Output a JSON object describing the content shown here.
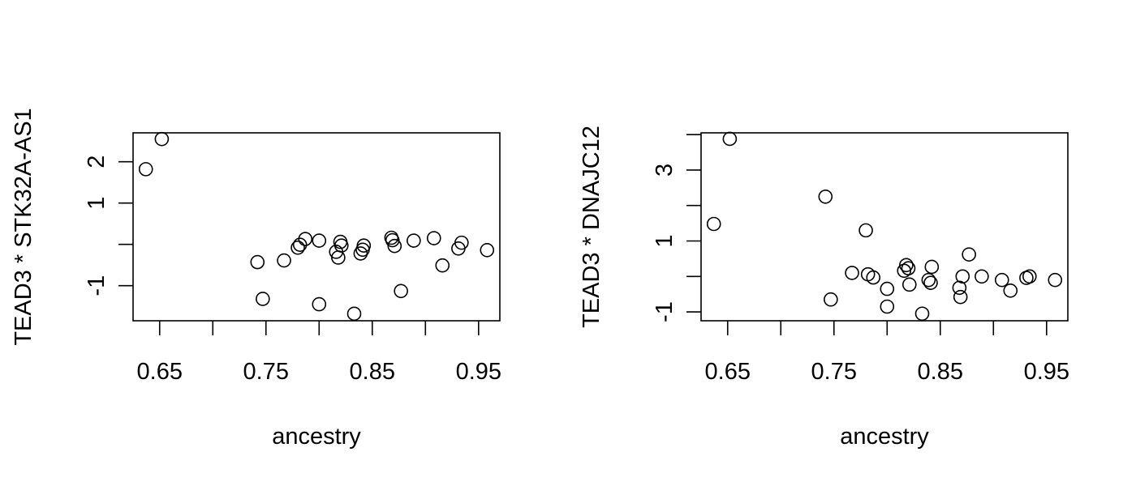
{
  "chart_data": [
    {
      "type": "scatter",
      "xlabel": "ancestry",
      "ylabel": "TEAD3 * STK32A-AS1",
      "xlim": [
        0.625,
        0.97
      ],
      "ylim": [
        -1.85,
        2.7
      ],
      "xticks": [
        0.65,
        0.7,
        0.75,
        0.8,
        0.85,
        0.9,
        0.95
      ],
      "xtick_labels": [
        "0.65",
        "",
        "0.75",
        "",
        "0.85",
        "",
        "0.95"
      ],
      "yticks": [
        -1,
        0,
        1,
        2
      ],
      "ytick_labels": [
        "-1",
        "",
        "1",
        "2"
      ],
      "grid": false,
      "legend": "none",
      "points": [
        {
          "x": 0.637,
          "y": 1.82
        },
        {
          "x": 0.652,
          "y": 2.55
        },
        {
          "x": 0.742,
          "y": -0.43
        },
        {
          "x": 0.747,
          "y": -1.32
        },
        {
          "x": 0.767,
          "y": -0.39
        },
        {
          "x": 0.78,
          "y": -0.08
        },
        {
          "x": 0.782,
          "y": -0.01
        },
        {
          "x": 0.787,
          "y": 0.13
        },
        {
          "x": 0.8,
          "y": 0.09
        },
        {
          "x": 0.8,
          "y": -1.45
        },
        {
          "x": 0.816,
          "y": -0.18
        },
        {
          "x": 0.818,
          "y": -0.32
        },
        {
          "x": 0.82,
          "y": 0.06
        },
        {
          "x": 0.821,
          "y": -0.03
        },
        {
          "x": 0.833,
          "y": -1.68
        },
        {
          "x": 0.839,
          "y": -0.22
        },
        {
          "x": 0.841,
          "y": -0.13
        },
        {
          "x": 0.842,
          "y": -0.03
        },
        {
          "x": 0.868,
          "y": 0.16
        },
        {
          "x": 0.869,
          "y": 0.1
        },
        {
          "x": 0.871,
          "y": -0.04
        },
        {
          "x": 0.877,
          "y": -1.13
        },
        {
          "x": 0.889,
          "y": 0.09
        },
        {
          "x": 0.908,
          "y": 0.15
        },
        {
          "x": 0.916,
          "y": -0.51
        },
        {
          "x": 0.931,
          "y": -0.1
        },
        {
          "x": 0.934,
          "y": 0.04
        },
        {
          "x": 0.958,
          "y": -0.14
        }
      ]
    },
    {
      "type": "scatter",
      "xlabel": "ancestry",
      "ylabel": "TEAD3 * DNAJC12",
      "xlim": [
        0.625,
        0.97
      ],
      "ylim": [
        -1.25,
        4.05
      ],
      "xticks": [
        0.65,
        0.7,
        0.75,
        0.8,
        0.85,
        0.9,
        0.95
      ],
      "xtick_labels": [
        "0.65",
        "",
        "0.75",
        "",
        "0.85",
        "",
        "0.95"
      ],
      "yticks": [
        -1,
        0,
        1,
        2,
        3,
        4
      ],
      "ytick_labels": [
        "-1",
        "",
        "1",
        "",
        "3",
        ""
      ],
      "grid": false,
      "legend": "none",
      "points": [
        {
          "x": 0.637,
          "y": 1.48
        },
        {
          "x": 0.652,
          "y": 3.88
        },
        {
          "x": 0.742,
          "y": 2.25
        },
        {
          "x": 0.747,
          "y": -0.65
        },
        {
          "x": 0.767,
          "y": 0.1
        },
        {
          "x": 0.78,
          "y": 1.3
        },
        {
          "x": 0.782,
          "y": 0.06
        },
        {
          "x": 0.787,
          "y": -0.03
        },
        {
          "x": 0.8,
          "y": -0.35
        },
        {
          "x": 0.8,
          "y": -0.85
        },
        {
          "x": 0.816,
          "y": 0.16
        },
        {
          "x": 0.818,
          "y": 0.32
        },
        {
          "x": 0.82,
          "y": 0.23
        },
        {
          "x": 0.821,
          "y": -0.23
        },
        {
          "x": 0.833,
          "y": -1.05
        },
        {
          "x": 0.839,
          "y": -0.1
        },
        {
          "x": 0.841,
          "y": -0.18
        },
        {
          "x": 0.842,
          "y": 0.27
        },
        {
          "x": 0.868,
          "y": -0.32
        },
        {
          "x": 0.869,
          "y": -0.58
        },
        {
          "x": 0.871,
          "y": 0.0
        },
        {
          "x": 0.877,
          "y": 0.62
        },
        {
          "x": 0.889,
          "y": 0.0
        },
        {
          "x": 0.908,
          "y": -0.1
        },
        {
          "x": 0.916,
          "y": -0.4
        },
        {
          "x": 0.931,
          "y": -0.04
        },
        {
          "x": 0.934,
          "y": 0.0
        },
        {
          "x": 0.958,
          "y": -0.1
        }
      ]
    }
  ]
}
